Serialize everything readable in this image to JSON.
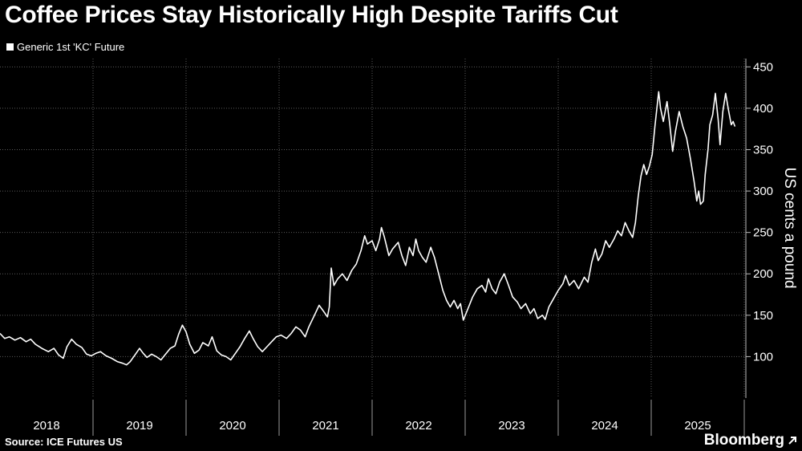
{
  "header": {
    "title": "Coffee Prices Stay Historically High Despite Tariffs Cut"
  },
  "footer": {
    "source": "Source: ICE Futures US",
    "brand": "Bloomberg",
    "brand_icon": "arrow-icon"
  },
  "chart_data": {
    "type": "line",
    "title": "Coffee Prices Stay Historically High Despite Tariffs Cut",
    "series_name": "Generic 1st 'KC' Future",
    "ylabel": "US cents a pound",
    "xlabel": "",
    "ylim": [
      50,
      460
    ],
    "yticks": [
      100,
      150,
      200,
      250,
      300,
      350,
      400,
      450
    ],
    "xticks": [
      "2018",
      "2019",
      "2020",
      "2021",
      "2022",
      "2023",
      "2024",
      "2025"
    ],
    "xlim": [
      2018.0,
      2025.9
    ],
    "grid": true,
    "line_color": "#ffffff",
    "points": [
      [
        2018.0,
        128
      ],
      [
        2018.05,
        122
      ],
      [
        2018.1,
        124
      ],
      [
        2018.16,
        120
      ],
      [
        2018.22,
        123
      ],
      [
        2018.28,
        118
      ],
      [
        2018.33,
        121
      ],
      [
        2018.38,
        115
      ],
      [
        2018.45,
        110
      ],
      [
        2018.52,
        106
      ],
      [
        2018.58,
        110
      ],
      [
        2018.63,
        102
      ],
      [
        2018.68,
        98
      ],
      [
        2018.72,
        112
      ],
      [
        2018.77,
        121
      ],
      [
        2018.82,
        115
      ],
      [
        2018.88,
        111
      ],
      [
        2018.93,
        103
      ],
      [
        2018.98,
        101
      ],
      [
        2019.03,
        104
      ],
      [
        2019.08,
        106
      ],
      [
        2019.14,
        101
      ],
      [
        2019.2,
        98
      ],
      [
        2019.26,
        94
      ],
      [
        2019.32,
        92
      ],
      [
        2019.36,
        90
      ],
      [
        2019.4,
        94
      ],
      [
        2019.45,
        102
      ],
      [
        2019.5,
        110
      ],
      [
        2019.54,
        104
      ],
      [
        2019.58,
        99
      ],
      [
        2019.63,
        103
      ],
      [
        2019.68,
        100
      ],
      [
        2019.73,
        96
      ],
      [
        2019.78,
        103
      ],
      [
        2019.83,
        110
      ],
      [
        2019.88,
        113
      ],
      [
        2019.92,
        127
      ],
      [
        2019.96,
        138
      ],
      [
        2020.0,
        130
      ],
      [
        2020.04,
        115
      ],
      [
        2020.09,
        104
      ],
      [
        2020.14,
        108
      ],
      [
        2020.18,
        117
      ],
      [
        2020.24,
        113
      ],
      [
        2020.28,
        124
      ],
      [
        2020.33,
        107
      ],
      [
        2020.38,
        102
      ],
      [
        2020.43,
        100
      ],
      [
        2020.48,
        96
      ],
      [
        2020.53,
        104
      ],
      [
        2020.58,
        112
      ],
      [
        2020.63,
        122
      ],
      [
        2020.68,
        131
      ],
      [
        2020.72,
        122
      ],
      [
        2020.77,
        112
      ],
      [
        2020.82,
        106
      ],
      [
        2020.87,
        112
      ],
      [
        2020.92,
        118
      ],
      [
        2020.97,
        124
      ],
      [
        2021.02,
        126
      ],
      [
        2021.08,
        122
      ],
      [
        2021.13,
        128
      ],
      [
        2021.18,
        136
      ],
      [
        2021.23,
        132
      ],
      [
        2021.28,
        124
      ],
      [
        2021.32,
        136
      ],
      [
        2021.38,
        150
      ],
      [
        2021.43,
        162
      ],
      [
        2021.47,
        156
      ],
      [
        2021.52,
        148
      ],
      [
        2021.54,
        160
      ],
      [
        2021.56,
        207
      ],
      [
        2021.59,
        186
      ],
      [
        2021.63,
        194
      ],
      [
        2021.68,
        200
      ],
      [
        2021.73,
        192
      ],
      [
        2021.78,
        204
      ],
      [
        2021.83,
        212
      ],
      [
        2021.88,
        228
      ],
      [
        2021.92,
        246
      ],
      [
        2021.95,
        236
      ],
      [
        2022.0,
        240
      ],
      [
        2022.04,
        228
      ],
      [
        2022.08,
        242
      ],
      [
        2022.1,
        256
      ],
      [
        2022.13,
        245
      ],
      [
        2022.18,
        222
      ],
      [
        2022.22,
        230
      ],
      [
        2022.28,
        238
      ],
      [
        2022.32,
        222
      ],
      [
        2022.36,
        210
      ],
      [
        2022.4,
        232
      ],
      [
        2022.44,
        222
      ],
      [
        2022.47,
        242
      ],
      [
        2022.5,
        228
      ],
      [
        2022.54,
        220
      ],
      [
        2022.58,
        214
      ],
      [
        2022.63,
        232
      ],
      [
        2022.67,
        220
      ],
      [
        2022.72,
        198
      ],
      [
        2022.76,
        180
      ],
      [
        2022.8,
        168
      ],
      [
        2022.84,
        160
      ],
      [
        2022.88,
        168
      ],
      [
        2022.92,
        158
      ],
      [
        2022.95,
        164
      ],
      [
        2022.98,
        144
      ],
      [
        2023.03,
        158
      ],
      [
        2023.08,
        172
      ],
      [
        2023.13,
        182
      ],
      [
        2023.18,
        186
      ],
      [
        2023.22,
        178
      ],
      [
        2023.25,
        194
      ],
      [
        2023.29,
        182
      ],
      [
        2023.33,
        176
      ],
      [
        2023.37,
        190
      ],
      [
        2023.42,
        200
      ],
      [
        2023.46,
        188
      ],
      [
        2023.51,
        172
      ],
      [
        2023.56,
        166
      ],
      [
        2023.6,
        158
      ],
      [
        2023.65,
        164
      ],
      [
        2023.7,
        152
      ],
      [
        2023.74,
        158
      ],
      [
        2023.78,
        146
      ],
      [
        2023.83,
        150
      ],
      [
        2023.86,
        145
      ],
      [
        2023.9,
        160
      ],
      [
        2023.95,
        170
      ],
      [
        2024.0,
        180
      ],
      [
        2024.05,
        188
      ],
      [
        2024.08,
        198
      ],
      [
        2024.12,
        186
      ],
      [
        2024.17,
        192
      ],
      [
        2024.22,
        182
      ],
      [
        2024.28,
        196
      ],
      [
        2024.32,
        190
      ],
      [
        2024.36,
        214
      ],
      [
        2024.4,
        230
      ],
      [
        2024.43,
        216
      ],
      [
        2024.47,
        224
      ],
      [
        2024.51,
        240
      ],
      [
        2024.55,
        232
      ],
      [
        2024.6,
        242
      ],
      [
        2024.64,
        252
      ],
      [
        2024.68,
        246
      ],
      [
        2024.72,
        262
      ],
      [
        2024.76,
        252
      ],
      [
        2024.8,
        244
      ],
      [
        2024.83,
        262
      ],
      [
        2024.86,
        294
      ],
      [
        2024.89,
        318
      ],
      [
        2024.92,
        332
      ],
      [
        2024.95,
        320
      ],
      [
        2024.98,
        330
      ],
      [
        2025.01,
        344
      ],
      [
        2025.04,
        378
      ],
      [
        2025.08,
        420
      ],
      [
        2025.1,
        400
      ],
      [
        2025.13,
        384
      ],
      [
        2025.17,
        408
      ],
      [
        2025.2,
        380
      ],
      [
        2025.23,
        348
      ],
      [
        2025.26,
        372
      ],
      [
        2025.3,
        396
      ],
      [
        2025.34,
        378
      ],
      [
        2025.38,
        364
      ],
      [
        2025.42,
        340
      ],
      [
        2025.46,
        312
      ],
      [
        2025.49,
        288
      ],
      [
        2025.51,
        300
      ],
      [
        2025.53,
        284
      ],
      [
        2025.56,
        288
      ],
      [
        2025.58,
        320
      ],
      [
        2025.61,
        350
      ],
      [
        2025.63,
        380
      ],
      [
        2025.66,
        392
      ],
      [
        2025.69,
        418
      ],
      [
        2025.72,
        386
      ],
      [
        2025.74,
        356
      ],
      [
        2025.77,
        396
      ],
      [
        2025.8,
        418
      ],
      [
        2025.83,
        398
      ],
      [
        2025.86,
        380
      ],
      [
        2025.88,
        384
      ],
      [
        2025.9,
        378
      ]
    ]
  }
}
